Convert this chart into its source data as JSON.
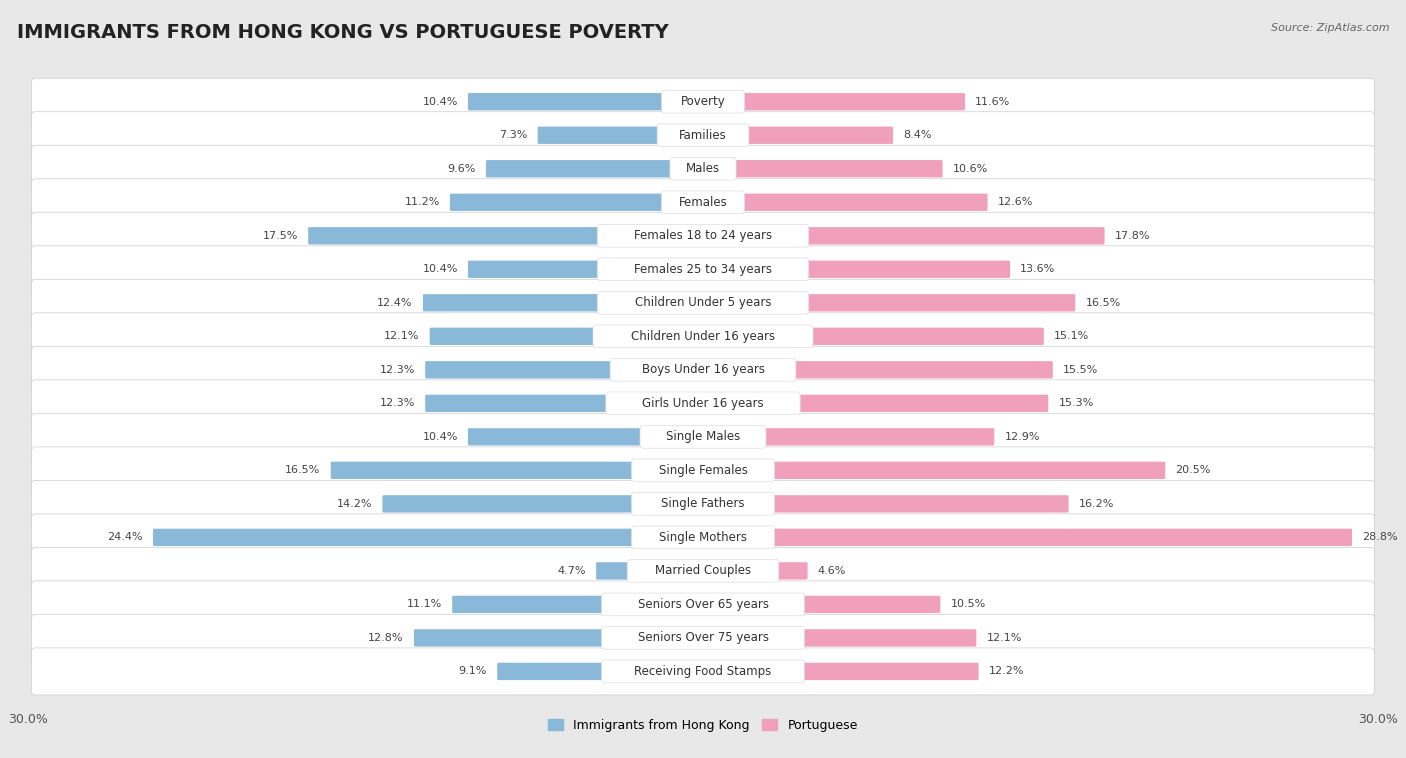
{
  "title": "IMMIGRANTS FROM HONG KONG VS PORTUGUESE POVERTY",
  "source": "Source: ZipAtlas.com",
  "categories": [
    "Poverty",
    "Families",
    "Males",
    "Females",
    "Females 18 to 24 years",
    "Females 25 to 34 years",
    "Children Under 5 years",
    "Children Under 16 years",
    "Boys Under 16 years",
    "Girls Under 16 years",
    "Single Males",
    "Single Females",
    "Single Fathers",
    "Single Mothers",
    "Married Couples",
    "Seniors Over 65 years",
    "Seniors Over 75 years",
    "Receiving Food Stamps"
  ],
  "left_values": [
    10.4,
    7.3,
    9.6,
    11.2,
    17.5,
    10.4,
    12.4,
    12.1,
    12.3,
    12.3,
    10.4,
    16.5,
    14.2,
    24.4,
    4.7,
    11.1,
    12.8,
    9.1
  ],
  "right_values": [
    11.6,
    8.4,
    10.6,
    12.6,
    17.8,
    13.6,
    16.5,
    15.1,
    15.5,
    15.3,
    12.9,
    20.5,
    16.2,
    28.8,
    4.6,
    10.5,
    12.1,
    12.2
  ],
  "left_color": "#89b8d8",
  "right_color": "#f0a0bb",
  "left_label": "Immigrants from Hong Kong",
  "right_label": "Portuguese",
  "x_max": 30.0,
  "background_color": "#e8e8e8",
  "row_color": "#ffffff",
  "title_fontsize": 14,
  "label_fontsize": 8.5,
  "value_fontsize": 8,
  "axis_label_fontsize": 9
}
